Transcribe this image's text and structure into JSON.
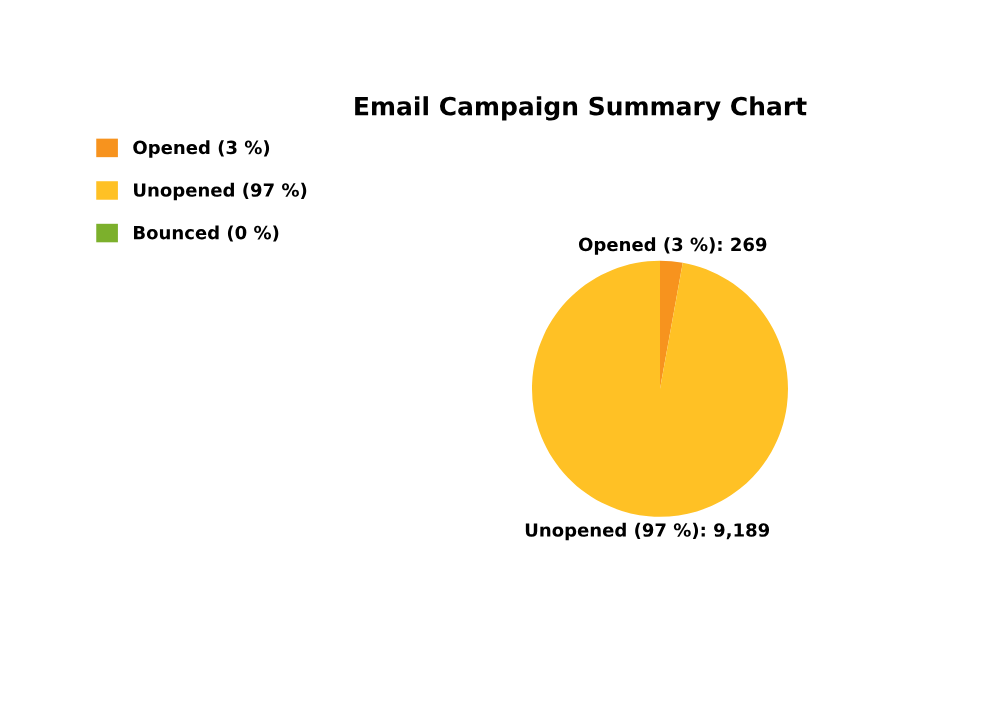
{
  "chart_data": {
    "type": "pie",
    "title": "Email Campaign Summary Chart",
    "categories": [
      "Opened (3 %)",
      "Unopened (97 %)",
      "Bounced (0 %)"
    ],
    "values": [
      269,
      9189,
      0
    ],
    "colors": [
      "#f7931e",
      "#ffc125",
      "#7cb02c"
    ],
    "value_labels": [
      "Opened (3 %): 269",
      "Unopened (97 %): 9,189",
      null
    ],
    "legend": "top left"
  }
}
